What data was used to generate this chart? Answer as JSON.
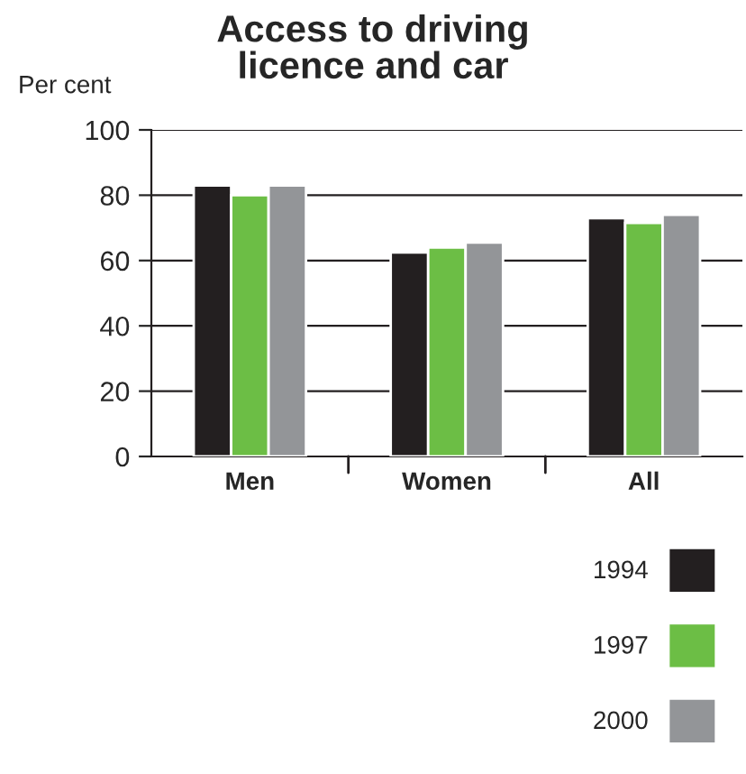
{
  "chart_data": {
    "type": "bar",
    "title": "Access to driving\nlicence and car",
    "ylabel": "Per cent",
    "categories": [
      "Men",
      "Women",
      "All"
    ],
    "series": [
      {
        "name": "1994",
        "color": "#231f20",
        "values": [
          83,
          62.5,
          73
        ]
      },
      {
        "name": "1997",
        "color": "#6cbe45",
        "values": [
          80,
          64,
          71.5
        ]
      },
      {
        "name": "2000",
        "color": "#939598",
        "values": [
          83,
          65.5,
          74
        ]
      }
    ],
    "ylim": [
      0,
      100
    ],
    "yticks": [
      0,
      20,
      40,
      60,
      80,
      100
    ],
    "grid": "y",
    "legend": "bottom right"
  }
}
